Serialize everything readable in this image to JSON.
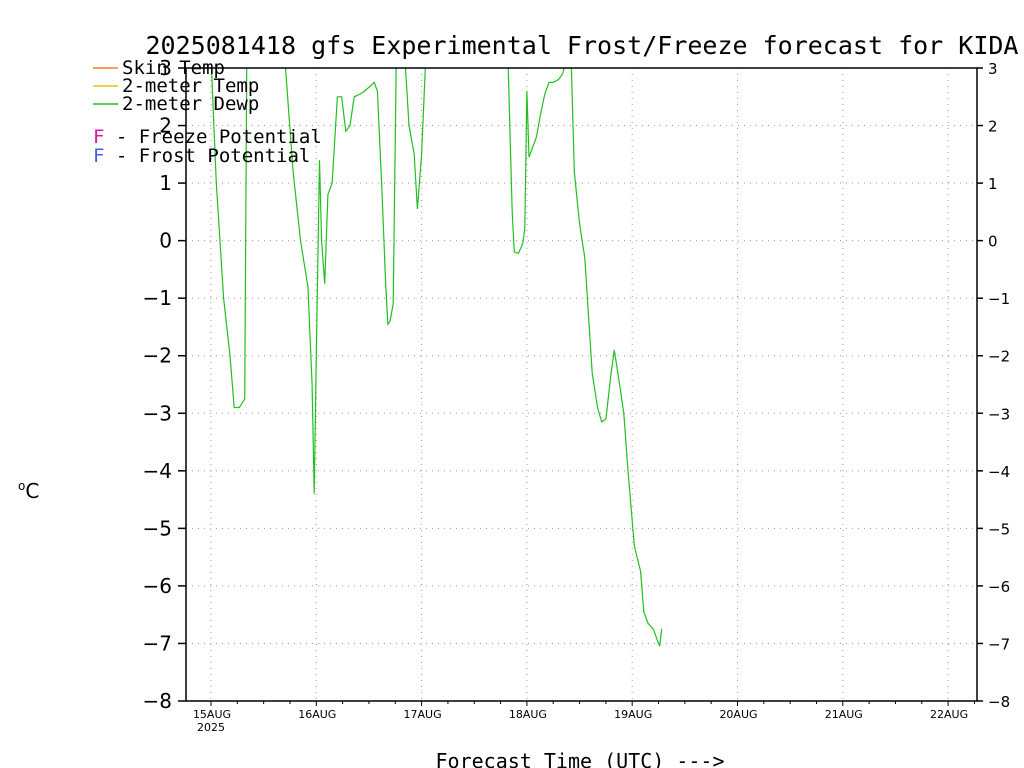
{
  "chart_data": {
    "type": "line",
    "title": "2025081418 gfs Experimental Frost/Freeze forecast for KIDA",
    "xlabel": "Forecast Time (UTC) --->",
    "ylabel": "oC",
    "ylim": [
      -8,
      3
    ],
    "xlim_days": [
      "14AUG2025 18Z",
      "22AUG2025 06Z"
    ],
    "y_ticks": [
      "−8",
      "−7",
      "−6",
      "−5",
      "−4",
      "−3",
      "−2",
      "−1",
      "0",
      "1",
      "2",
      "3"
    ],
    "x_ticks": [
      "15AUG",
      "16AUG",
      "17AUG",
      "18AUG",
      "19AUG",
      "20AUG",
      "21AUG",
      "22AUG"
    ],
    "x_year_label": "2025",
    "grid": true,
    "legend": [
      {
        "label": "Skin Temp",
        "color": "#f0802a"
      },
      {
        "label": "2-meter Temp",
        "color": "#e8c020"
      },
      {
        "label": "2-meter Dewp",
        "color": "#20c020"
      }
    ],
    "annotations": [
      {
        "letter": "F",
        "text": " - Freeze Potential",
        "color": "#d020a0"
      },
      {
        "letter": "F",
        "text": " - Frost Potential",
        "color": "#4060e0"
      }
    ],
    "series": [
      {
        "name": "2-meter Dewp",
        "color": "#20c020",
        "points": [
          [
            0.0,
            3.2
          ],
          [
            0.05,
            1.0
          ],
          [
            0.12,
            -1.0
          ],
          [
            0.18,
            -2.0
          ],
          [
            0.22,
            -2.9
          ],
          [
            0.27,
            -2.9
          ],
          [
            0.32,
            -2.75
          ],
          [
            0.34,
            3.2
          ],
          [
            0.7,
            3.2
          ],
          [
            0.78,
            1.2
          ],
          [
            0.85,
            0.0
          ],
          [
            0.92,
            -0.8
          ],
          [
            0.96,
            -2.5
          ],
          [
            0.98,
            -4.4
          ],
          [
            1.0,
            -2.0
          ],
          [
            1.03,
            1.4
          ],
          [
            1.05,
            0.0
          ],
          [
            1.08,
            -0.75
          ],
          [
            1.11,
            0.8
          ],
          [
            1.15,
            1.0
          ],
          [
            1.2,
            2.5
          ],
          [
            1.24,
            2.5
          ],
          [
            1.28,
            1.9
          ],
          [
            1.32,
            2.0
          ],
          [
            1.36,
            2.5
          ],
          [
            1.42,
            2.55
          ],
          [
            1.46,
            2.6
          ],
          [
            1.52,
            2.7
          ],
          [
            1.55,
            2.75
          ],
          [
            1.58,
            2.6
          ],
          [
            1.62,
            1.0
          ],
          [
            1.66,
            -0.8
          ],
          [
            1.68,
            -1.45
          ],
          [
            1.7,
            -1.4
          ],
          [
            1.73,
            -1.1
          ],
          [
            1.76,
            3.2
          ],
          [
            1.84,
            3.2
          ],
          [
            1.88,
            2.0
          ],
          [
            1.93,
            1.5
          ],
          [
            1.96,
            0.55
          ],
          [
            2.0,
            1.5
          ],
          [
            2.04,
            3.2
          ],
          [
            2.82,
            3.2
          ],
          [
            2.86,
            0.5
          ],
          [
            2.88,
            -0.2
          ],
          [
            2.92,
            -0.22
          ],
          [
            2.96,
            -0.05
          ],
          [
            2.98,
            0.2
          ],
          [
            3.0,
            2.6
          ],
          [
            3.02,
            1.45
          ],
          [
            3.05,
            1.6
          ],
          [
            3.09,
            1.8
          ],
          [
            3.13,
            2.2
          ],
          [
            3.17,
            2.55
          ],
          [
            3.21,
            2.75
          ],
          [
            3.25,
            2.75
          ],
          [
            3.3,
            2.8
          ],
          [
            3.34,
            2.9
          ],
          [
            3.38,
            3.2
          ],
          [
            3.42,
            3.2
          ],
          [
            3.45,
            1.2
          ],
          [
            3.5,
            0.3
          ],
          [
            3.55,
            -0.3
          ],
          [
            3.62,
            -2.3
          ],
          [
            3.67,
            -2.9
          ],
          [
            3.71,
            -3.15
          ],
          [
            3.75,
            -3.1
          ],
          [
            3.8,
            -2.3
          ],
          [
            3.83,
            -1.9
          ],
          [
            3.88,
            -2.5
          ],
          [
            3.92,
            -3.0
          ],
          [
            3.96,
            -4.0
          ],
          [
            4.02,
            -5.3
          ],
          [
            4.08,
            -5.75
          ],
          [
            4.11,
            -6.45
          ],
          [
            4.15,
            -6.65
          ],
          [
            4.2,
            -6.75
          ],
          [
            4.24,
            -6.95
          ],
          [
            4.26,
            -7.05
          ],
          [
            4.28,
            -6.75
          ]
        ]
      }
    ]
  }
}
